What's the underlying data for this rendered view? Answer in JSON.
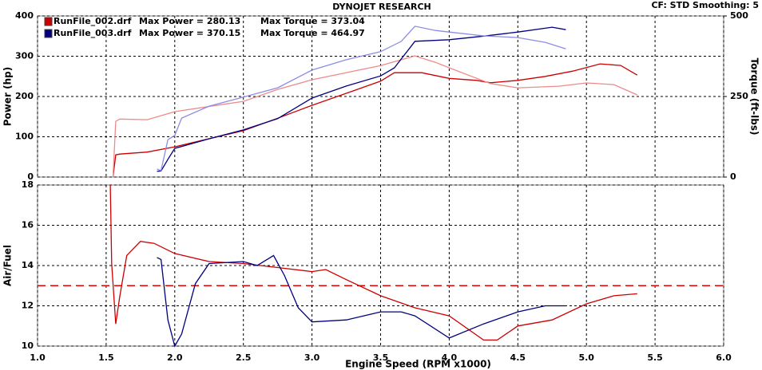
{
  "chart_data": [
    {
      "type": "line",
      "title": "DYNOJET RESEARCH",
      "note": "CF: STD  Smoothing: 5",
      "ylabel": "Power (hp)",
      "y2label": "Torque (ft-lbs)",
      "xlim": [
        1,
        6
      ],
      "xticks": [
        1,
        1.5,
        2,
        2.5,
        3,
        3.5,
        4,
        4.5,
        5,
        5.5,
        6
      ],
      "ylim": [
        0,
        400
      ],
      "yticks": [
        0,
        100,
        200,
        300,
        400
      ],
      "y2lim": [
        0,
        500
      ],
      "y2ticks": [
        0,
        250,
        500
      ],
      "grid": true,
      "series": [
        {
          "name": "RunFile_002.drf",
          "max_power_label": "Max Power = 280.13",
          "max_torque_label": "Max Torque = 373.04",
          "color": "#cc0000",
          "x": [
            1.55,
            1.57,
            1.6,
            1.8,
            2.0,
            2.25,
            2.5,
            2.75,
            3.0,
            3.25,
            3.5,
            3.6,
            3.8,
            4.0,
            4.2,
            4.3,
            4.5,
            4.7,
            4.9,
            5.1,
            5.25,
            5.37
          ],
          "values": [
            0,
            55,
            57,
            62,
            75,
            95,
            115,
            146,
            178,
            208,
            238,
            259,
            259,
            245,
            240,
            234,
            240,
            250,
            263,
            281,
            277,
            253
          ]
        },
        {
          "color": "#ee8a8a",
          "axis": "y2",
          "x": [
            1.55,
            1.57,
            1.6,
            1.8,
            2.0,
            2.5,
            2.75,
            3.0,
            3.5,
            3.75,
            3.9,
            4.0,
            4.3,
            4.5,
            4.8,
            5.0,
            5.2,
            5.37
          ],
          "values": [
            0,
            173,
            180,
            178,
            203,
            235,
            272,
            302,
            346,
            376,
            356,
            339,
            290,
            277,
            282,
            292,
            287,
            255
          ]
        },
        {
          "name": "RunFile_003.drf",
          "max_power_label": "Max Power = 370.15",
          "max_torque_label": "Max Torque = 464.97",
          "color": "#000080",
          "x": [
            1.87,
            1.9,
            1.95,
            2.0,
            2.25,
            2.5,
            2.75,
            3.0,
            3.25,
            3.5,
            3.6,
            3.75,
            4.0,
            4.25,
            4.5,
            4.75,
            4.85
          ],
          "values": [
            14,
            15,
            44,
            71,
            95,
            117,
            145,
            196,
            226,
            251,
            271,
            337,
            341,
            350,
            360,
            372,
            366
          ]
        },
        {
          "color": "#8c8ce6",
          "axis": "y2",
          "x": [
            1.87,
            1.9,
            1.95,
            2.0,
            2.05,
            2.25,
            2.5,
            2.75,
            3.0,
            3.25,
            3.5,
            3.65,
            3.75,
            3.9,
            4.0,
            4.25,
            4.5,
            4.7,
            4.85
          ],
          "values": [
            25,
            20,
            116,
            129,
            183,
            220,
            248,
            277,
            332,
            364,
            389,
            421,
            468,
            455,
            450,
            438,
            433,
            418,
            398
          ]
        }
      ]
    },
    {
      "type": "line",
      "ylabel": "Air/Fuel",
      "xlabel": "Engine Speed (RPM x1000)",
      "xlim": [
        1,
        6
      ],
      "xticks": [
        {
          "value": 1,
          "label": "1.0"
        },
        {
          "value": 1.5,
          "label": "1.5"
        },
        {
          "value": 2,
          "label": "2.0"
        },
        {
          "value": 2.5,
          "label": "2.5"
        },
        {
          "value": 3,
          "label": "3.0"
        },
        {
          "value": 3.5,
          "label": "3.5"
        },
        {
          "value": 4,
          "label": "4.0"
        },
        {
          "value": 4.5,
          "label": "4.5"
        },
        {
          "value": 5,
          "label": "5.0"
        },
        {
          "value": 5.5,
          "label": "5.5"
        },
        {
          "value": 6,
          "label": "6.0"
        }
      ],
      "ylim": [
        10,
        18
      ],
      "yticks": [
        10,
        12,
        14,
        16,
        18
      ],
      "grid": true,
      "ref_line": 13,
      "ref_color": "#e00000",
      "series": [
        {
          "color": "#cc0000",
          "x": [
            1.53,
            1.54,
            1.57,
            1.6,
            1.65,
            1.75,
            1.85,
            2.0,
            2.25,
            2.5,
            2.75,
            3.0,
            3.1,
            3.25,
            3.5,
            3.75,
            4.0,
            4.25,
            4.35,
            4.5,
            4.75,
            5.0,
            5.2,
            5.37
          ],
          "values": [
            18,
            14.1,
            11.1,
            12.5,
            14.5,
            15.2,
            15.1,
            14.6,
            14.2,
            14.1,
            13.9,
            13.7,
            13.8,
            13.3,
            12.5,
            11.9,
            11.5,
            10.3,
            10.3,
            11.0,
            11.3,
            12.1,
            12.5,
            12.6
          ]
        },
        {
          "color": "#000080",
          "x": [
            1.87,
            1.9,
            1.95,
            2.0,
            2.05,
            2.15,
            2.25,
            2.5,
            2.6,
            2.72,
            2.8,
            2.9,
            3.0,
            3.25,
            3.5,
            3.65,
            3.75,
            4.0,
            4.25,
            4.5,
            4.7,
            4.85
          ],
          "values": [
            14.4,
            14.3,
            11.3,
            10,
            10.6,
            13.1,
            14.1,
            14.2,
            14.0,
            14.5,
            13.5,
            11.9,
            11.2,
            11.3,
            11.7,
            11.7,
            11.5,
            10.4,
            11.1,
            11.7,
            12.0,
            12.0
          ]
        }
      ]
    }
  ]
}
